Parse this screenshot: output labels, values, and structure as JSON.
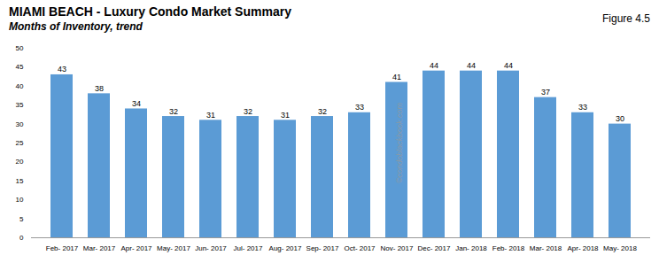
{
  "chart_data": {
    "type": "bar",
    "title": "MIAMI BEACH - Luxury Condo Market Summary",
    "subtitle": "Months of Inventory, trend",
    "annotations": [
      "Figure 4.5",
      "©condoblackbook.com"
    ],
    "categories": [
      "Feb- 2017",
      "Mar- 2017",
      "Apr- 2017",
      "May- 2017",
      "Jun- 2017",
      "Jul- 2017",
      "Aug- 2017",
      "Sep- 2017",
      "Oct- 2017",
      "Nov- 2017",
      "Dec- 2017",
      "Jan- 2018",
      "Feb- 2018",
      "Mar- 2018",
      "Apr- 2018",
      "May- 2018"
    ],
    "values": [
      43,
      38,
      34,
      32,
      31,
      32,
      31,
      32,
      33,
      41,
      44,
      44,
      44,
      37,
      33,
      30
    ],
    "color": "#5B9BD5",
    "ylim": [
      0,
      50
    ],
    "yticks": [
      0,
      5,
      10,
      15,
      20,
      25,
      30,
      35,
      40,
      45,
      50
    ],
    "grid": false,
    "data_labels": true
  }
}
